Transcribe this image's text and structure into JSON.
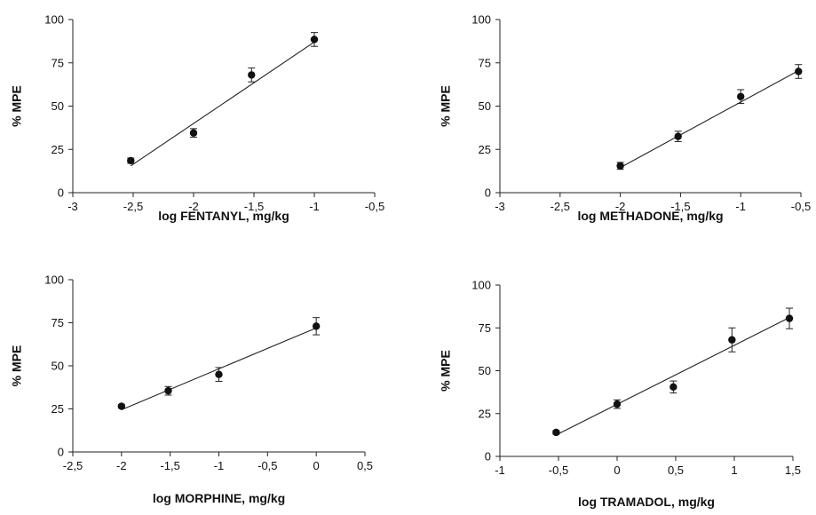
{
  "chart_data": [
    {
      "type": "scatter",
      "xlabel": "log FENTANYL, mg/kg",
      "ylabel": "% MPE",
      "xlim": [
        -3,
        -0.5
      ],
      "ylim": [
        0,
        100
      ],
      "xticks": [
        -3,
        -2.5,
        -2,
        -1.5,
        -1,
        -0.5
      ],
      "xtick_labels": [
        "-3",
        "-2,5",
        "-2",
        "-1,5",
        "-1",
        "-0,5"
      ],
      "yticks": [
        0,
        25,
        50,
        75,
        100
      ],
      "ytick_labels": [
        "0",
        "25",
        "50",
        "75",
        "100"
      ],
      "grid": false,
      "series": [
        {
          "x": [
            -2.52,
            -2.0,
            -1.52,
            -1.0
          ],
          "y": [
            18.5,
            34.5,
            68,
            88.5
          ],
          "error": [
            1.5,
            2.5,
            4,
            4
          ]
        }
      ],
      "fit_line": {
        "x": [
          -2.52,
          -1.0
        ],
        "y": [
          15.5,
          87
        ]
      }
    },
    {
      "type": "scatter",
      "xlabel": "log METHADONE, mg/kg",
      "ylabel": "% MPE",
      "xlim": [
        -3,
        -0.5
      ],
      "ylim": [
        0,
        100
      ],
      "xticks": [
        -3,
        -2.5,
        -2,
        -1.5,
        -1,
        -0.5
      ],
      "xtick_labels": [
        "-3",
        "-2,5",
        "-2",
        "-1,5",
        "-1",
        "-0,5"
      ],
      "yticks": [
        0,
        25,
        50,
        75,
        100
      ],
      "ytick_labels": [
        "0",
        "25",
        "50",
        "75",
        "100"
      ],
      "grid": false,
      "series": [
        {
          "x": [
            -2.0,
            -1.52,
            -1.0,
            -0.52
          ],
          "y": [
            15.5,
            32.5,
            55.5,
            70
          ],
          "error": [
            2,
            3,
            4,
            4
          ]
        }
      ],
      "fit_line": {
        "x": [
          -2.0,
          -0.52
        ],
        "y": [
          14.5,
          70.5
        ]
      }
    },
    {
      "type": "scatter",
      "xlabel": "log MORPHINE, mg/kg",
      "ylabel": "% MPE",
      "xlim": [
        -2.5,
        0.5
      ],
      "ylim": [
        0,
        100
      ],
      "xticks": [
        -2.5,
        -2,
        -1.5,
        -1,
        -0.5,
        0,
        0.5
      ],
      "xtick_labels": [
        "-2,5",
        "-2",
        "-1,5",
        "-1",
        "-0,5",
        "0",
        "0,5"
      ],
      "yticks": [
        0,
        25,
        50,
        75,
        100
      ],
      "ytick_labels": [
        "0",
        "25",
        "50",
        "75",
        "100"
      ],
      "grid": false,
      "series": [
        {
          "x": [
            -2.0,
            -1.52,
            -1.0,
            0.0
          ],
          "y": [
            26.5,
            35.5,
            45,
            73
          ],
          "error": [
            1,
            2.5,
            4,
            5
          ]
        }
      ],
      "fit_line": {
        "x": [
          -2.0,
          0.0
        ],
        "y": [
          24.5,
          72
        ]
      }
    },
    {
      "type": "scatter",
      "xlabel": "log TRAMADOL, mg/kg",
      "ylabel": "% MPE",
      "xlim": [
        -1,
        1.5
      ],
      "ylim": [
        0,
        100
      ],
      "xticks": [
        -1,
        -0.5,
        0,
        0.5,
        1,
        1.5
      ],
      "xtick_labels": [
        "-1",
        "-0,5",
        "0",
        "0,5",
        "1",
        "1,5"
      ],
      "yticks": [
        0,
        25,
        50,
        75,
        100
      ],
      "ytick_labels": [
        "0",
        "25",
        "50",
        "75",
        "100"
      ],
      "grid": false,
      "series": [
        {
          "x": [
            -0.52,
            0.0,
            0.48,
            0.98,
            1.47
          ],
          "y": [
            14,
            30.5,
            40.5,
            68,
            80.5
          ],
          "error": [
            1,
            2.5,
            3.5,
            7,
            6
          ]
        }
      ],
      "fit_line": {
        "x": [
          -0.52,
          1.47
        ],
        "y": [
          12.5,
          81
        ]
      }
    }
  ]
}
